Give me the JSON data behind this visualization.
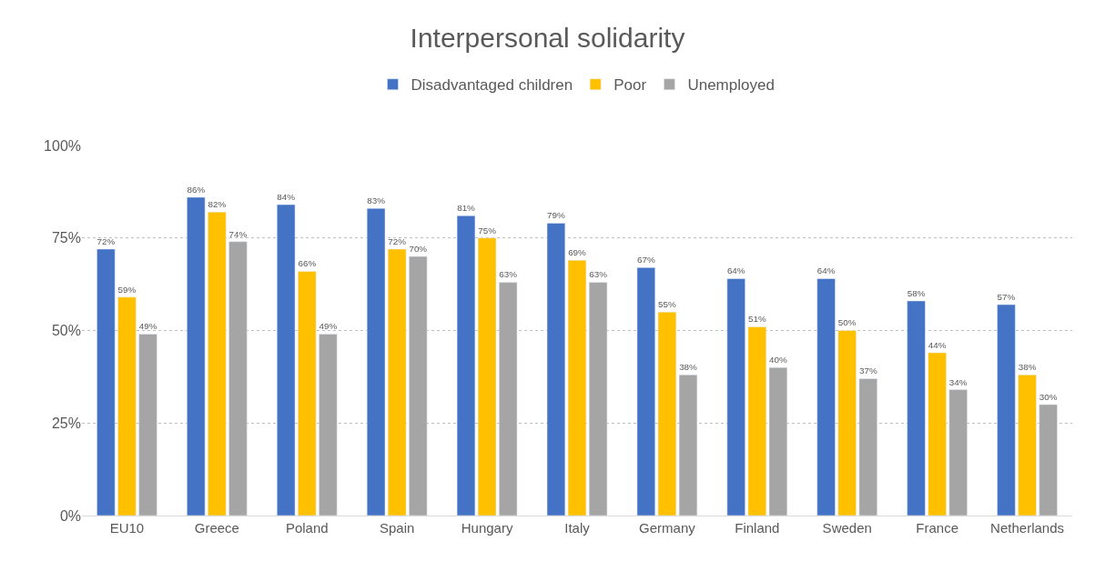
{
  "chart_data": {
    "type": "bar",
    "title": "Interpersonal solidarity",
    "categories": [
      "EU10",
      "Greece",
      "Poland",
      "Spain",
      "Hungary",
      "Italy",
      "Germany",
      "Finland",
      "Sweden",
      "France",
      "Netherlands"
    ],
    "series": [
      {
        "name": "Disadvantaged children",
        "color": "#4472c4",
        "values": [
          72,
          86,
          84,
          83,
          81,
          79,
          67,
          64,
          64,
          58,
          57
        ],
        "value_labels": [
          "72%",
          "86%",
          "84%",
          "83%",
          "81%",
          "79%",
          "67%",
          "64%",
          "64%",
          "58%",
          "57%"
        ]
      },
      {
        "name": "Poor",
        "color": "#ffc000",
        "values": [
          59,
          82,
          66,
          72,
          75,
          69,
          55,
          51,
          50,
          44,
          38
        ],
        "value_labels": [
          "59%",
          "82%",
          "66%",
          "72%",
          "75%",
          "69%",
          "55%",
          "51%",
          "50%",
          "44%",
          "38%"
        ]
      },
      {
        "name": "Unemployed",
        "color": "#a5a5a5",
        "values": [
          49,
          74,
          49,
          70,
          63,
          63,
          38,
          40,
          37,
          34,
          30
        ],
        "value_labels": [
          "49%",
          "74%",
          "49%",
          "70%",
          "63%",
          "63%",
          "38%",
          "40%",
          "37%",
          "34%",
          "30%"
        ]
      }
    ],
    "ylim": [
      0,
      100
    ],
    "yticks": [
      {
        "value": 0,
        "label": "0%"
      },
      {
        "value": 25,
        "label": "25%"
      },
      {
        "value": 50,
        "label": "50%"
      },
      {
        "value": 75,
        "label": "75%"
      },
      {
        "value": 100,
        "label": "100%"
      }
    ],
    "grid": "y",
    "legend": "top"
  }
}
